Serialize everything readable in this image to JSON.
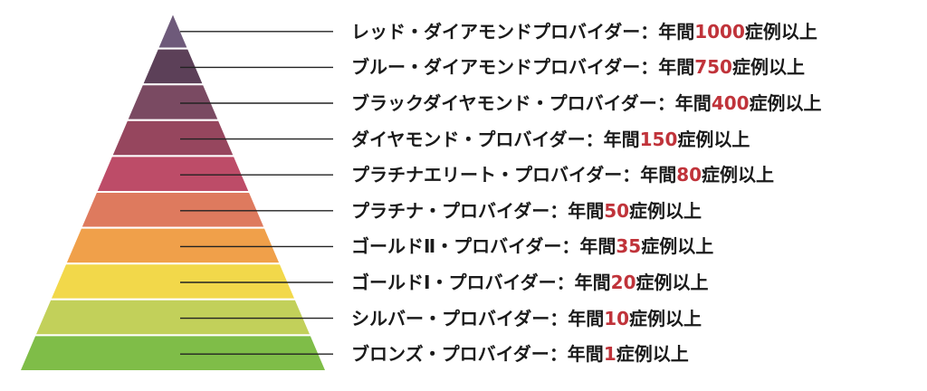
{
  "tiers": [
    {
      "name": "レッド・ダイアモンドプロバイダー",
      "prefix": "：年間",
      "count": "1000",
      "suffix": "症例以上",
      "color": "#6e5a7a"
    },
    {
      "name": "ブルー・ダイアモンドプロバイダー",
      "prefix": "：年間",
      "count": "750",
      "suffix": "症例以上",
      "color": "#5c4058"
    },
    {
      "name": "ブラックダイヤモンド・プロバイダー",
      "prefix": "：年間",
      "count": "400",
      "suffix": "症例以上",
      "color": "#7a4a62"
    },
    {
      "name": "ダイヤモンド・プロバイダー",
      "prefix": "：年間",
      "count": "150",
      "suffix": "症例以上",
      "color": "#96465e"
    },
    {
      "name": "プラチナエリート・プロバイダー",
      "prefix": "：年間",
      "count": "80",
      "suffix": "症例以上",
      "color": "#bd4c68"
    },
    {
      "name": "プラチナ・プロバイダー",
      "prefix": "：年間",
      "count": "50",
      "suffix": "症例以上",
      "color": "#de7a5e"
    },
    {
      "name": "ゴールドⅡ・プロバイダー",
      "prefix": "：年間",
      "count": "35",
      "suffix": "症例以上",
      "color": "#f0a04a"
    },
    {
      "name": "ゴールドⅠ・プロバイダー",
      "prefix": "：年間",
      "count": "20",
      "suffix": "症例以上",
      "color": "#f2d84a"
    },
    {
      "name": "シルバー・プロバイダー",
      "prefix": "：年間",
      "count": "10",
      "suffix": "症例以上",
      "color": "#c2d05a"
    },
    {
      "name": "ブロンズ・プロバイダー",
      "prefix": "：年間",
      "count": "1",
      "suffix": "症例以上",
      "color": "#7fbd48"
    }
  ]
}
